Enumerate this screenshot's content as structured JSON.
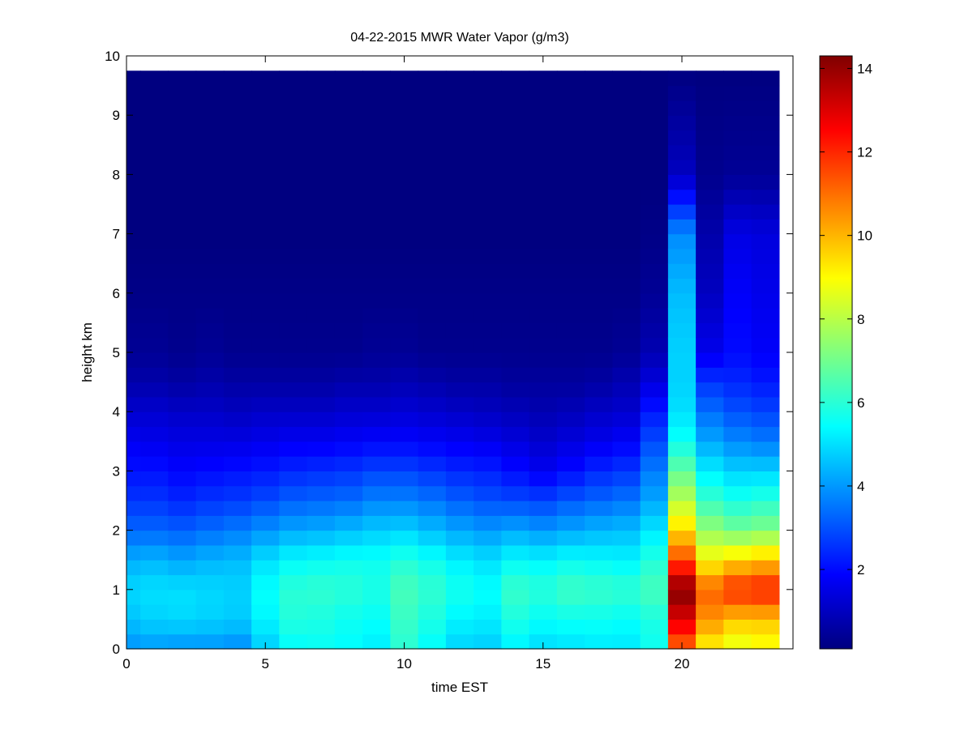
{
  "chart_data": {
    "type": "heatmap",
    "title": "04-22-2015 MWR Water Vapor (g/m3)",
    "xlabel": "time EST",
    "ylabel": "height km",
    "xlim": [
      0,
      24
    ],
    "ylim": [
      0,
      10
    ],
    "xticks": [
      0,
      5,
      10,
      15,
      20
    ],
    "yticks": [
      0,
      1,
      2,
      3,
      4,
      5,
      6,
      7,
      8,
      9,
      10
    ],
    "colorbar": {
      "colormap": "jet",
      "range": [
        0.1,
        14.3
      ],
      "ticks": [
        2,
        4,
        6,
        8,
        10,
        12,
        14
      ]
    },
    "data_extent": {
      "x_start": -0.5,
      "x_end": 23.5,
      "y_start": 0,
      "y_end": 9.75
    },
    "heights": [
      0,
      0.5,
      1,
      1.5,
      2,
      2.5,
      3,
      3.5,
      4,
      4.5,
      5,
      6,
      7,
      8,
      9.75
    ],
    "times": [
      0,
      1,
      2,
      3,
      4,
      5,
      6,
      7,
      8,
      9,
      10,
      11,
      12,
      13,
      14,
      15,
      16,
      17,
      18,
      19,
      20,
      21,
      22,
      23
    ],
    "values": [
      [
        3.9,
        4.6,
        4.9,
        4.3,
        3.3,
        2.6,
        2.1,
        1.7,
        1.2,
        0.7,
        0.4,
        0.2,
        0.1,
        0.1,
        0.1
      ],
      [
        4.0,
        4.8,
        5.0,
        4.4,
        3.3,
        2.6,
        2.1,
        1.6,
        1.2,
        0.7,
        0.4,
        0.2,
        0.1,
        0.1,
        0.1
      ],
      [
        3.9,
        4.9,
        5.0,
        4.2,
        3.2,
        2.4,
        1.9,
        1.5,
        1.1,
        0.6,
        0.3,
        0.2,
        0.1,
        0.1,
        0.1
      ],
      [
        3.9,
        4.8,
        4.9,
        4.4,
        3.4,
        2.6,
        2.0,
        1.5,
        1.1,
        0.7,
        0.4,
        0.2,
        0.1,
        0.1,
        0.1
      ],
      [
        3.8,
        4.7,
        4.8,
        4.5,
        3.6,
        2.7,
        2.1,
        1.5,
        1.0,
        0.6,
        0.3,
        0.2,
        0.1,
        0.1,
        0.1
      ],
      [
        4.7,
        5.3,
        5.5,
        5.0,
        3.9,
        2.9,
        2.2,
        1.6,
        1.1,
        0.6,
        0.3,
        0.2,
        0.1,
        0.1,
        0.1
      ],
      [
        5.4,
        5.9,
        6.0,
        5.4,
        4.2,
        3.2,
        2.4,
        1.7,
        1.1,
        0.6,
        0.3,
        0.2,
        0.1,
        0.1,
        0.1
      ],
      [
        5.5,
        5.8,
        6.1,
        5.5,
        4.3,
        3.3,
        2.5,
        1.7,
        1.1,
        0.6,
        0.3,
        0.2,
        0.1,
        0.1,
        0.1
      ],
      [
        5.4,
        5.6,
        6.0,
        5.6,
        4.5,
        3.4,
        2.6,
        1.8,
        1.2,
        0.7,
        0.3,
        0.2,
        0.1,
        0.1,
        0.1
      ],
      [
        5.2,
        5.5,
        5.8,
        5.6,
        4.7,
        3.7,
        2.8,
        1.9,
        1.2,
        0.7,
        0.4,
        0.2,
        0.1,
        0.1,
        0.1
      ],
      [
        6.0,
        6.2,
        6.4,
        5.9,
        4.8,
        3.7,
        2.8,
        1.9,
        1.3,
        0.8,
        0.4,
        0.2,
        0.1,
        0.1,
        0.1
      ],
      [
        5.4,
        5.8,
        6.1,
        5.6,
        4.5,
        3.5,
        2.6,
        1.8,
        1.2,
        0.7,
        0.3,
        0.2,
        0.1,
        0.1,
        0.1
      ],
      [
        4.8,
        5.3,
        5.7,
        5.2,
        4.2,
        3.2,
        2.4,
        1.7,
        1.1,
        0.6,
        0.3,
        0.2,
        0.1,
        0.1,
        0.1
      ],
      [
        4.7,
        5.2,
        5.5,
        5.0,
        4.0,
        3.0,
        2.3,
        1.6,
        1.0,
        0.6,
        0.3,
        0.2,
        0.1,
        0.1,
        0.1
      ],
      [
        5.2,
        5.8,
        6.2,
        5.4,
        4.2,
        2.9,
        2.0,
        1.4,
        0.9,
        0.5,
        0.3,
        0.2,
        0.1,
        0.1,
        0.1
      ],
      [
        4.9,
        5.5,
        6.0,
        5.3,
        4.0,
        2.8,
        1.7,
        1.2,
        0.8,
        0.5,
        0.3,
        0.2,
        0.1,
        0.1,
        0.1
      ],
      [
        5.0,
        5.6,
        6.3,
        5.5,
        4.2,
        3.1,
        2.0,
        1.4,
        0.9,
        0.5,
        0.3,
        0.2,
        0.1,
        0.1,
        0.1
      ],
      [
        5.1,
        5.6,
        6.2,
        5.4,
        4.4,
        3.3,
        2.4,
        1.6,
        1.1,
        0.6,
        0.3,
        0.2,
        0.1,
        0.1,
        0.1
      ],
      [
        5.1,
        5.5,
        6.1,
        5.3,
        4.5,
        3.5,
        2.6,
        1.8,
        1.2,
        0.8,
        0.4,
        0.2,
        0.1,
        0.1,
        0.1
      ],
      [
        5.6,
        5.8,
        6.4,
        5.9,
        5.1,
        4.2,
        3.6,
        2.9,
        2.2,
        1.4,
        0.8,
        0.4,
        0.2,
        0.1,
        0.1
      ],
      [
        11.0,
        13.0,
        14.3,
        11.5,
        9.5,
        8.0,
        6.8,
        5.6,
        5.0,
        4.8,
        4.8,
        4.5,
        3.8,
        1.0,
        0.1
      ],
      [
        9.0,
        10.5,
        11.2,
        9.0,
        7.5,
        6.2,
        5.2,
        4.2,
        3.4,
        2.6,
        1.6,
        1.0,
        0.7,
        0.3,
        0.1
      ],
      [
        8.5,
        9.8,
        12.0,
        9.5,
        7.0,
        5.8,
        4.8,
        3.8,
        3.0,
        2.4,
        2.0,
        1.8,
        1.5,
        0.4,
        0.1
      ],
      [
        8.8,
        9.8,
        12.2,
        9.8,
        7.2,
        6.0,
        4.8,
        3.6,
        2.8,
        2.2,
        1.8,
        1.6,
        1.4,
        0.4,
        0.1
      ]
    ]
  }
}
